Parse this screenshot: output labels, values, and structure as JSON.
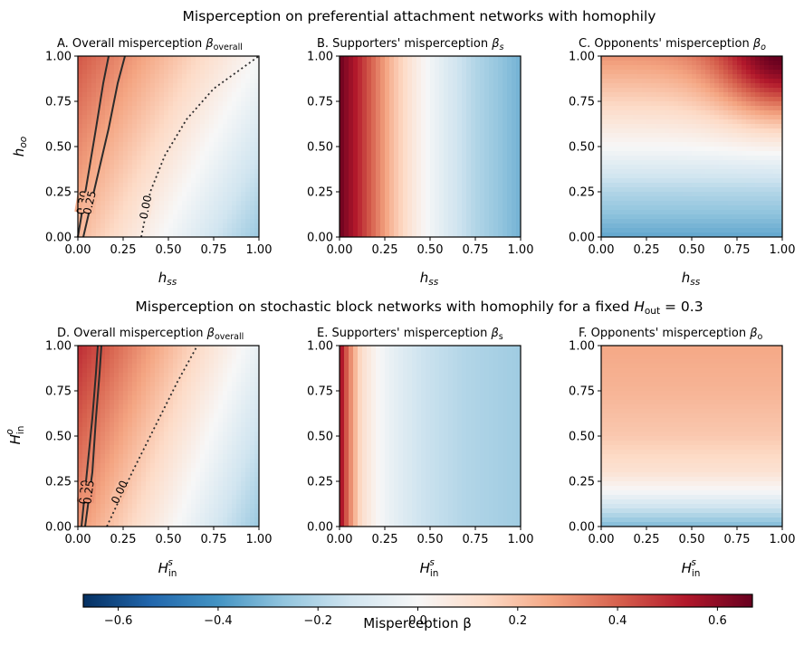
{
  "figure": {
    "row_titles": [
      "Misperception on preferential attachment networks with homophily",
      "Misperception on stochastic block networks with homophily for a fixed H_out = 0.3"
    ]
  },
  "colorbar": {
    "label": "Misperception β",
    "ticks": [
      "−0.6",
      "−0.4",
      "−0.2",
      "0.0",
      "0.2",
      "0.4",
      "0.6"
    ],
    "tick_values": [
      -0.6,
      -0.4,
      -0.2,
      0.0,
      0.2,
      0.4,
      0.6
    ],
    "range": [
      -0.67,
      0.67
    ],
    "colormap": "RdBu_r"
  },
  "chart_data": [
    {
      "type": "heatmap",
      "title": "A. Overall misperception β_overall",
      "xlabel": "h_ss",
      "ylabel": "h_oo",
      "xlim": [
        0,
        1
      ],
      "ylim": [
        0,
        1
      ],
      "x_ticks": [
        "0.00",
        "0.25",
        "0.50",
        "0.75",
        "1.00"
      ],
      "y_ticks": [
        "0.00",
        "0.25",
        "0.50",
        "0.75",
        "1.00"
      ],
      "corner_values": {
        "x0_y0": 0.22,
        "x0_y1": 0.42,
        "x1_y0": -0.25,
        "x1_y1": 0.0
      },
      "contours": [
        {
          "level": 0.3,
          "label": "0.30",
          "style": "solid",
          "points": [
            [
              0.0,
              0.0
            ],
            [
              0.05,
              0.3
            ],
            [
              0.1,
              0.6
            ],
            [
              0.14,
              0.85
            ],
            [
              0.17,
              1.0
            ]
          ]
        },
        {
          "level": 0.25,
          "label": "0.25",
          "style": "solid",
          "points": [
            [
              0.03,
              0.0
            ],
            [
              0.1,
              0.3
            ],
            [
              0.17,
              0.6
            ],
            [
              0.22,
              0.85
            ],
            [
              0.26,
              1.0
            ]
          ]
        },
        {
          "level": 0.0,
          "label": "0.00",
          "style": "dotted",
          "points": [
            [
              0.35,
              0.0
            ],
            [
              0.4,
              0.25
            ],
            [
              0.48,
              0.45
            ],
            [
              0.6,
              0.65
            ],
            [
              0.75,
              0.82
            ],
            [
              1.0,
              1.0
            ]
          ]
        }
      ]
    },
    {
      "type": "heatmap",
      "title": "B. Supporters' misperception β_s",
      "xlabel": "h_ss",
      "ylabel": "",
      "xlim": [
        0,
        1
      ],
      "ylim": [
        0,
        1
      ],
      "x_ticks": [
        "0.00",
        "0.25",
        "0.50",
        "0.75",
        "1.00"
      ],
      "y_ticks": [
        "0.00",
        "0.25",
        "0.50",
        "0.75",
        "1.00"
      ],
      "profile_axis": "x",
      "profile": [
        [
          0.0,
          0.66
        ],
        [
          0.1,
          0.52
        ],
        [
          0.2,
          0.36
        ],
        [
          0.3,
          0.2
        ],
        [
          0.4,
          0.08
        ],
        [
          0.5,
          -0.02
        ],
        [
          0.6,
          -0.1
        ],
        [
          0.75,
          -0.2
        ],
        [
          1.0,
          -0.32
        ]
      ]
    },
    {
      "type": "heatmap",
      "title": "C. Opponents' misperception β_o",
      "xlabel": "h_ss",
      "ylabel": "",
      "xlim": [
        0,
        1
      ],
      "ylim": [
        0,
        1
      ],
      "x_ticks": [
        "0.00",
        "0.25",
        "0.50",
        "0.75",
        "1.00"
      ],
      "y_ticks": [
        "0.00",
        "0.25",
        "0.50",
        "0.75",
        "1.00"
      ],
      "profile_axis": "y",
      "profile": [
        [
          0.0,
          -0.35
        ],
        [
          0.25,
          -0.2
        ],
        [
          0.5,
          0.0
        ],
        [
          0.75,
          0.15
        ],
        [
          1.0,
          0.3
        ]
      ],
      "peak": {
        "x": 1.0,
        "y": 1.0,
        "value": 0.68
      }
    },
    {
      "type": "heatmap",
      "title": "D. Overall misperception β_overall",
      "xlabel": "H_in^s",
      "ylabel": "H_in^o",
      "xlim": [
        0,
        1
      ],
      "ylim": [
        0,
        1
      ],
      "x_ticks": [
        "0.00",
        "0.25",
        "0.50",
        "0.75",
        "1.00"
      ],
      "y_ticks": [
        "0.00",
        "0.25",
        "0.50",
        "0.75",
        "1.00"
      ],
      "corner_values": {
        "x0_y0": 0.3,
        "x0_y1": 0.5,
        "x1_y0": -0.25,
        "x1_y1": -0.05
      },
      "contours": [
        {
          "level": 0.3,
          "label": "0.30",
          "style": "solid",
          "points": [
            [
              0.02,
              0.0
            ],
            [
              0.05,
              0.3
            ],
            [
              0.08,
              0.6
            ],
            [
              0.1,
              0.85
            ],
            [
              0.11,
              1.0
            ]
          ]
        },
        {
          "level": 0.25,
          "label": "0.25",
          "style": "solid",
          "points": [
            [
              0.04,
              0.0
            ],
            [
              0.08,
              0.3
            ],
            [
              0.1,
              0.6
            ],
            [
              0.12,
              0.85
            ],
            [
              0.13,
              1.0
            ]
          ]
        },
        {
          "level": 0.0,
          "label": "0.00",
          "style": "dotted",
          "points": [
            [
              0.16,
              0.0
            ],
            [
              0.3,
              0.3
            ],
            [
              0.45,
              0.6
            ],
            [
              0.55,
              0.8
            ],
            [
              0.66,
              1.0
            ]
          ]
        }
      ]
    },
    {
      "type": "heatmap",
      "title": "E. Supporters' misperception β_s",
      "xlabel": "H_in^s",
      "ylabel": "",
      "xlim": [
        0,
        1
      ],
      "ylim": [
        0,
        1
      ],
      "x_ticks": [
        "0.00",
        "0.25",
        "0.50",
        "0.75",
        "1.00"
      ],
      "y_ticks": [
        "0.00",
        "0.25",
        "0.50",
        "0.75",
        "1.00"
      ],
      "profile_axis": "x",
      "profile": [
        [
          0.0,
          0.6
        ],
        [
          0.03,
          0.45
        ],
        [
          0.07,
          0.28
        ],
        [
          0.12,
          0.12
        ],
        [
          0.2,
          0.02
        ],
        [
          0.28,
          -0.05
        ],
        [
          0.45,
          -0.14
        ],
        [
          0.7,
          -0.2
        ],
        [
          1.0,
          -0.24
        ]
      ]
    },
    {
      "type": "heatmap",
      "title": "F. Opponents' misperception β_o",
      "xlabel": "H_in^s",
      "ylabel": "",
      "xlim": [
        0,
        1
      ],
      "ylim": [
        0,
        1
      ],
      "x_ticks": [
        "0.00",
        "0.25",
        "0.50",
        "0.75",
        "1.00"
      ],
      "y_ticks": [
        "0.00",
        "0.25",
        "0.50",
        "0.75",
        "1.00"
      ],
      "profile_axis": "y",
      "profile": [
        [
          0.0,
          -0.3
        ],
        [
          0.1,
          -0.15
        ],
        [
          0.2,
          0.0
        ],
        [
          0.3,
          0.1
        ],
        [
          0.5,
          0.18
        ],
        [
          0.75,
          0.23
        ],
        [
          1.0,
          0.26
        ]
      ]
    }
  ]
}
